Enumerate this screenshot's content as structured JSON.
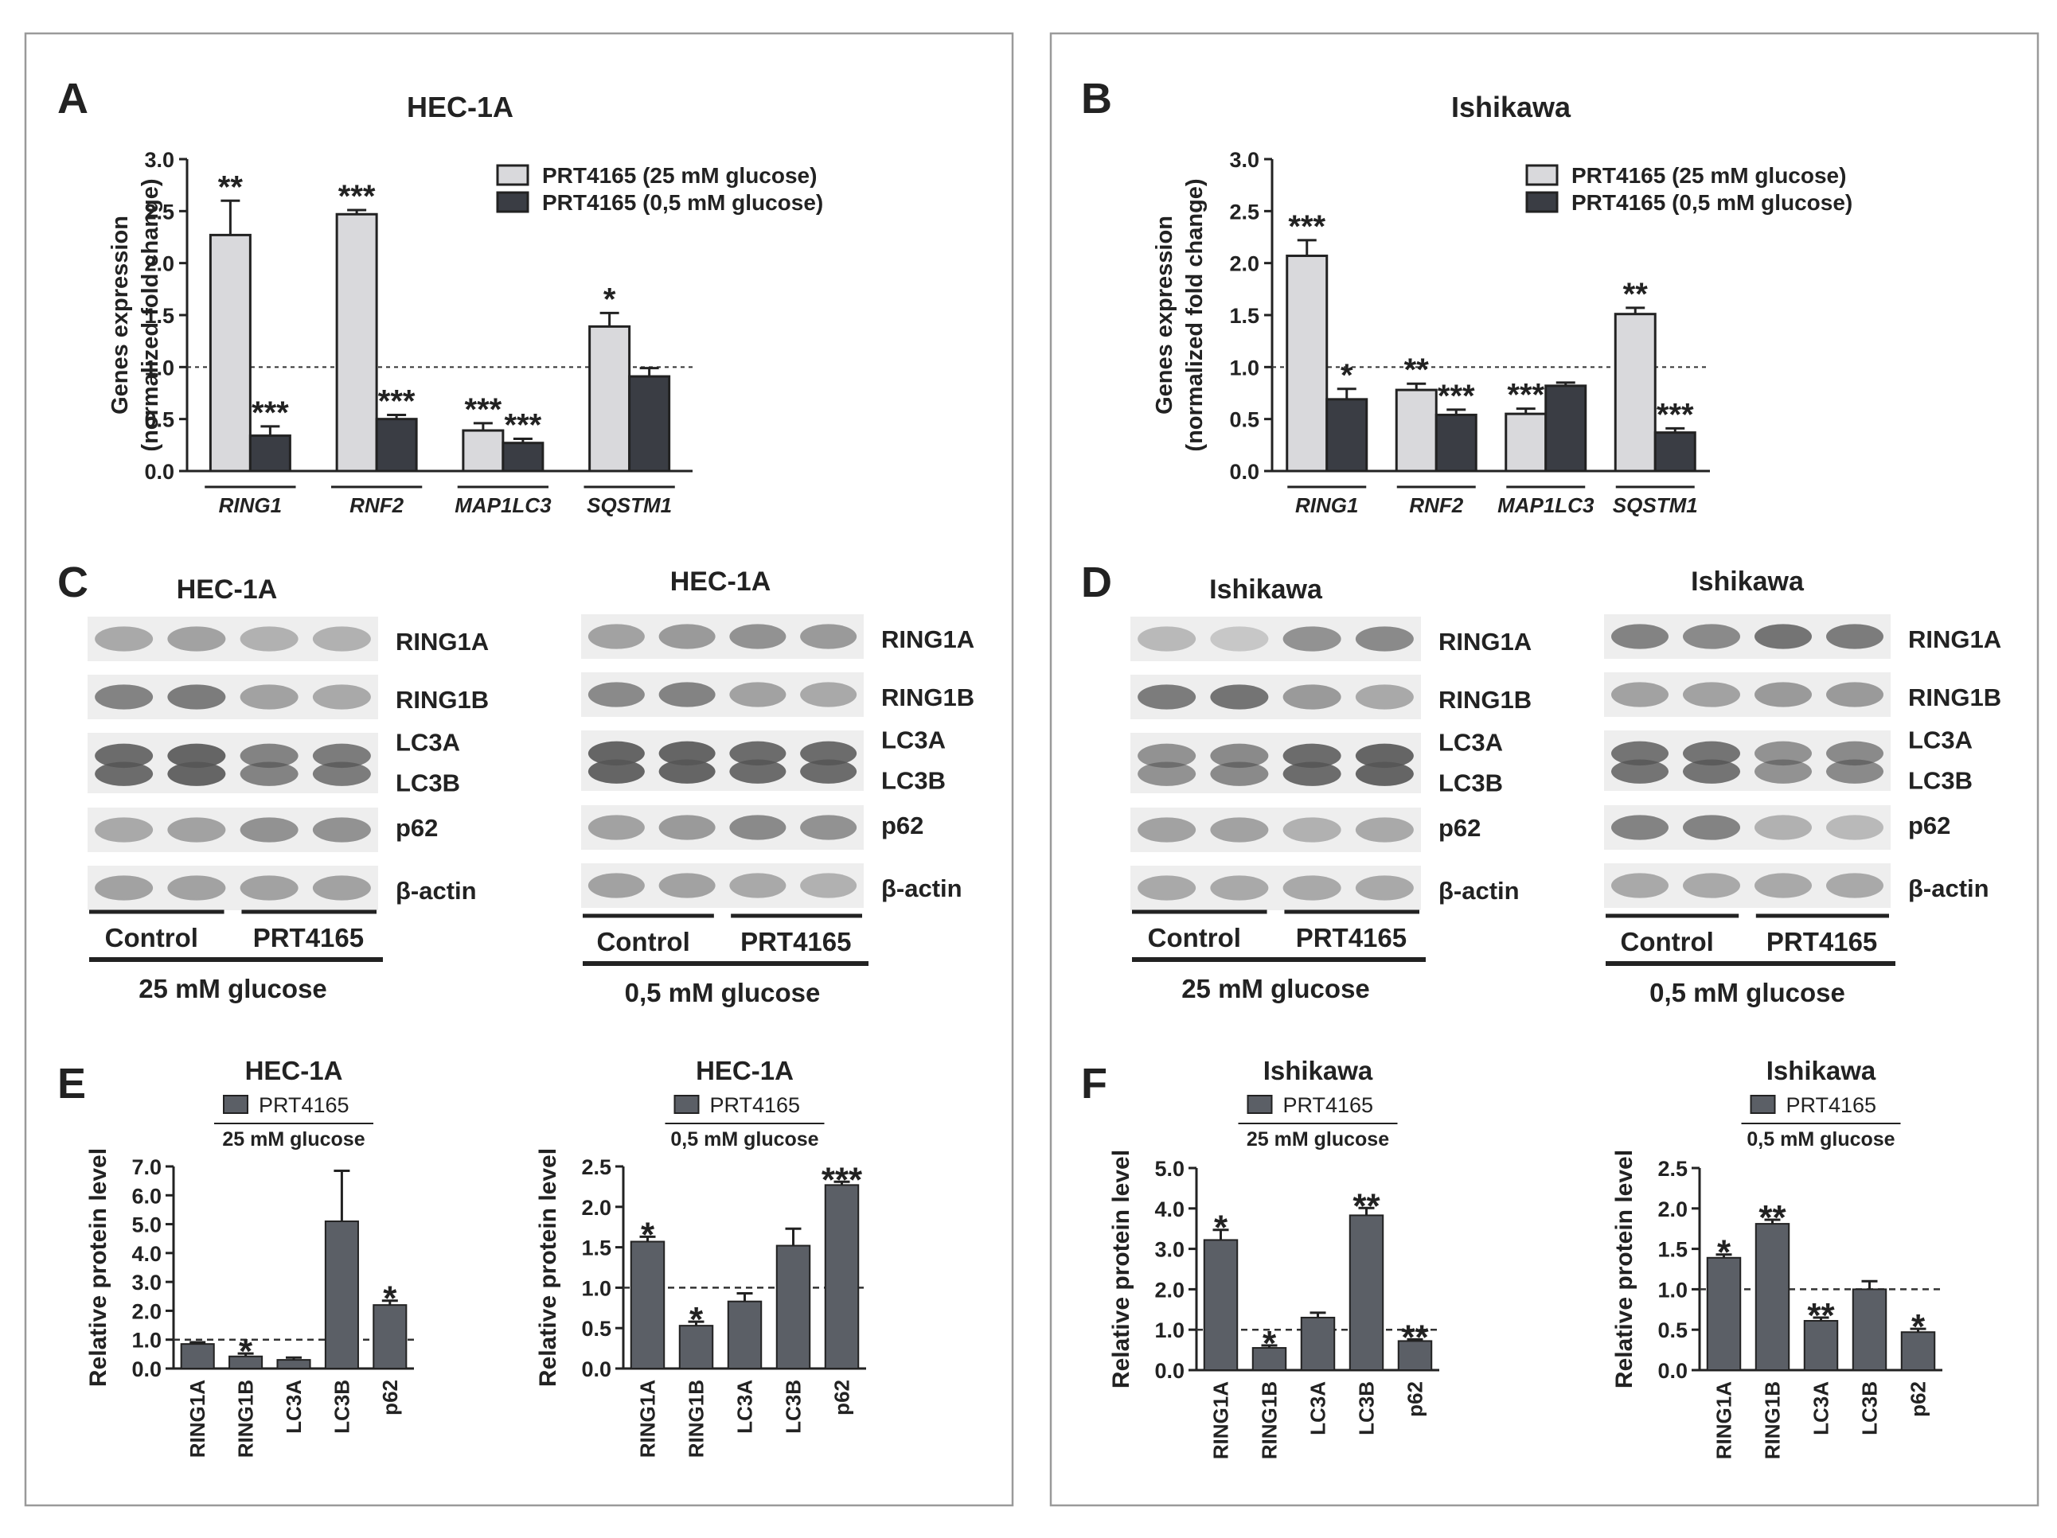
{
  "figure": {
    "panels": {
      "A": "A",
      "B": "B",
      "C": "C",
      "D": "D",
      "E": "E",
      "F": "F"
    }
  },
  "colors": {
    "light_bar": "#d9d9dc",
    "dark_bar": "#3a3d44",
    "grey_bar": "#5b5f66",
    "axis": "#222222",
    "frame": "#9a9a9a",
    "band_bg": "#eeeeee",
    "band_dark": "#555555"
  },
  "chart_data": [
    {
      "id": "A",
      "type": "bar",
      "title": "HEC-1A",
      "ylabel": [
        "Genes expression",
        "(normalized fold change)"
      ],
      "ylim": [
        0,
        3.0
      ],
      "yticks": [
        "0.0",
        "0.5",
        "1.0",
        "1.5",
        "2.0",
        "2.5",
        "3.0"
      ],
      "reference_line": 1.0,
      "categories": [
        "RING1",
        "RNF2",
        "MAP1LC3",
        "SQSTM1"
      ],
      "series": [
        {
          "name": "PRT4165 (25 mM glucose)",
          "color": "light",
          "values": [
            2.27,
            2.47,
            0.39,
            1.39
          ],
          "errors": [
            0.33,
            0.04,
            0.07,
            0.13
          ],
          "stars": [
            "**",
            "***",
            "***",
            "*"
          ]
        },
        {
          "name": "PRT4165 (0,5 mM glucose)",
          "color": "dark",
          "values": [
            0.34,
            0.5,
            0.27,
            0.91
          ],
          "errors": [
            0.09,
            0.04,
            0.04,
            0.08
          ],
          "stars": [
            "***",
            "***",
            "***",
            ""
          ]
        }
      ]
    },
    {
      "id": "B",
      "type": "bar",
      "title": "Ishikawa",
      "ylabel": [
        "Genes expression",
        "(normalized fold change)"
      ],
      "ylim": [
        0,
        3.0
      ],
      "yticks": [
        "0.0",
        "0.5",
        "1.0",
        "1.5",
        "2.0",
        "2.5",
        "3.0"
      ],
      "reference_line": 1.0,
      "categories": [
        "RING1",
        "RNF2",
        "MAP1LC3",
        "SQSTM1"
      ],
      "series": [
        {
          "name": "PRT4165 (25 mM glucose)",
          "color": "light",
          "values": [
            2.07,
            0.78,
            0.55,
            1.51
          ],
          "errors": [
            0.15,
            0.06,
            0.05,
            0.06
          ],
          "stars": [
            "***",
            "**",
            "***",
            "**"
          ]
        },
        {
          "name": "PRT4165 (0,5 mM glucose)",
          "color": "dark",
          "values": [
            0.69,
            0.54,
            0.82,
            0.37
          ],
          "errors": [
            0.1,
            0.05,
            0.03,
            0.04
          ],
          "stars": [
            "*",
            "***",
            "",
            "***"
          ]
        }
      ]
    },
    {
      "id": "E1",
      "type": "bar",
      "title": "HEC-1A",
      "legend": "PRT4165",
      "condition": "25 mM glucose",
      "ylabel": "Relative protein level",
      "ylim": [
        0,
        7.0
      ],
      "yticks": [
        "0.0",
        "1.0",
        "2.0",
        "3.0",
        "4.0",
        "5.0",
        "6.0",
        "7.0"
      ],
      "reference_line": 1.0,
      "categories": [
        "RING1A",
        "RING1B",
        "LC3A",
        "LC3B",
        "p62"
      ],
      "values": [
        0.85,
        0.42,
        0.3,
        5.1,
        2.2
      ],
      "errors": [
        0.06,
        0.1,
        0.08,
        1.75,
        0.15
      ],
      "stars": [
        "",
        "*",
        "",
        "",
        "*"
      ]
    },
    {
      "id": "E2",
      "type": "bar",
      "title": "HEC-1A",
      "legend": "PRT4165",
      "condition": "0,5 mM glucose",
      "ylabel": "Relative protein level",
      "ylim": [
        0,
        2.5
      ],
      "yticks": [
        "0.0",
        "0.5",
        "1.0",
        "1.5",
        "2.0",
        "2.5"
      ],
      "reference_line": 1.0,
      "categories": [
        "RING1A",
        "RING1B",
        "LC3A",
        "LC3B",
        "p62"
      ],
      "values": [
        1.57,
        0.53,
        0.83,
        1.52,
        2.27
      ],
      "errors": [
        0.06,
        0.05,
        0.1,
        0.21,
        0.04
      ],
      "stars": [
        "*",
        "*",
        "",
        "",
        "***"
      ]
    },
    {
      "id": "F1",
      "type": "bar",
      "title": "Ishikawa",
      "legend": "PRT4165",
      "condition": "25 mM glucose",
      "ylabel": "Relative protein level",
      "ylim": [
        0,
        5.0
      ],
      "yticks": [
        "0.0",
        "1.0",
        "2.0",
        "3.0",
        "4.0",
        "5.0"
      ],
      "reference_line": 1.0,
      "categories": [
        "RING1A",
        "RING1B",
        "LC3A",
        "LC3B",
        "p62"
      ],
      "values": [
        3.22,
        0.55,
        1.3,
        3.83,
        0.72
      ],
      "errors": [
        0.25,
        0.06,
        0.12,
        0.18,
        0.04
      ],
      "stars": [
        "*",
        "*",
        "",
        "**",
        "**"
      ]
    },
    {
      "id": "F2",
      "type": "bar",
      "title": "Ishikawa",
      "legend": "PRT4165",
      "condition": "0,5 mM glucose",
      "ylabel": "Relative protein level",
      "ylim": [
        0,
        2.5
      ],
      "yticks": [
        "0.0",
        "0.5",
        "1.0",
        "1.5",
        "2.0",
        "2.5"
      ],
      "reference_line": 1.0,
      "categories": [
        "RING1A",
        "RING1B",
        "LC3A",
        "LC3B",
        "p62"
      ],
      "values": [
        1.39,
        1.81,
        0.61,
        1.0,
        0.47
      ],
      "errors": [
        0.04,
        0.05,
        0.04,
        0.1,
        0.04
      ],
      "stars": [
        "*",
        "**",
        "**",
        "",
        "*"
      ]
    }
  ],
  "blots": [
    {
      "id": "C1",
      "title": "HEC-1A",
      "labels": [
        "RING1A",
        "RING1B",
        "LC3A",
        "LC3B",
        "p62",
        "β-actin"
      ],
      "groups": [
        "Control",
        "PRT4165"
      ],
      "condition": "25 mM glucose"
    },
    {
      "id": "C2",
      "title": "HEC-1A",
      "labels": [
        "RING1A",
        "RING1B",
        "LC3A",
        "LC3B",
        "p62",
        "β-actin"
      ],
      "groups": [
        "Control",
        "PRT4165"
      ],
      "condition": "0,5 mM glucose"
    },
    {
      "id": "D1",
      "title": "Ishikawa",
      "labels": [
        "RING1A",
        "RING1B",
        "LC3A",
        "LC3B",
        "p62",
        "β-actin"
      ],
      "groups": [
        "Control",
        "PRT4165"
      ],
      "condition": "25 mM glucose"
    },
    {
      "id": "D2",
      "title": "Ishikawa",
      "labels": [
        "RING1A",
        "RING1B",
        "LC3A",
        "LC3B",
        "p62",
        "β-actin"
      ],
      "groups": [
        "Control",
        "PRT4165"
      ],
      "condition": "0,5 mM glucose"
    }
  ]
}
